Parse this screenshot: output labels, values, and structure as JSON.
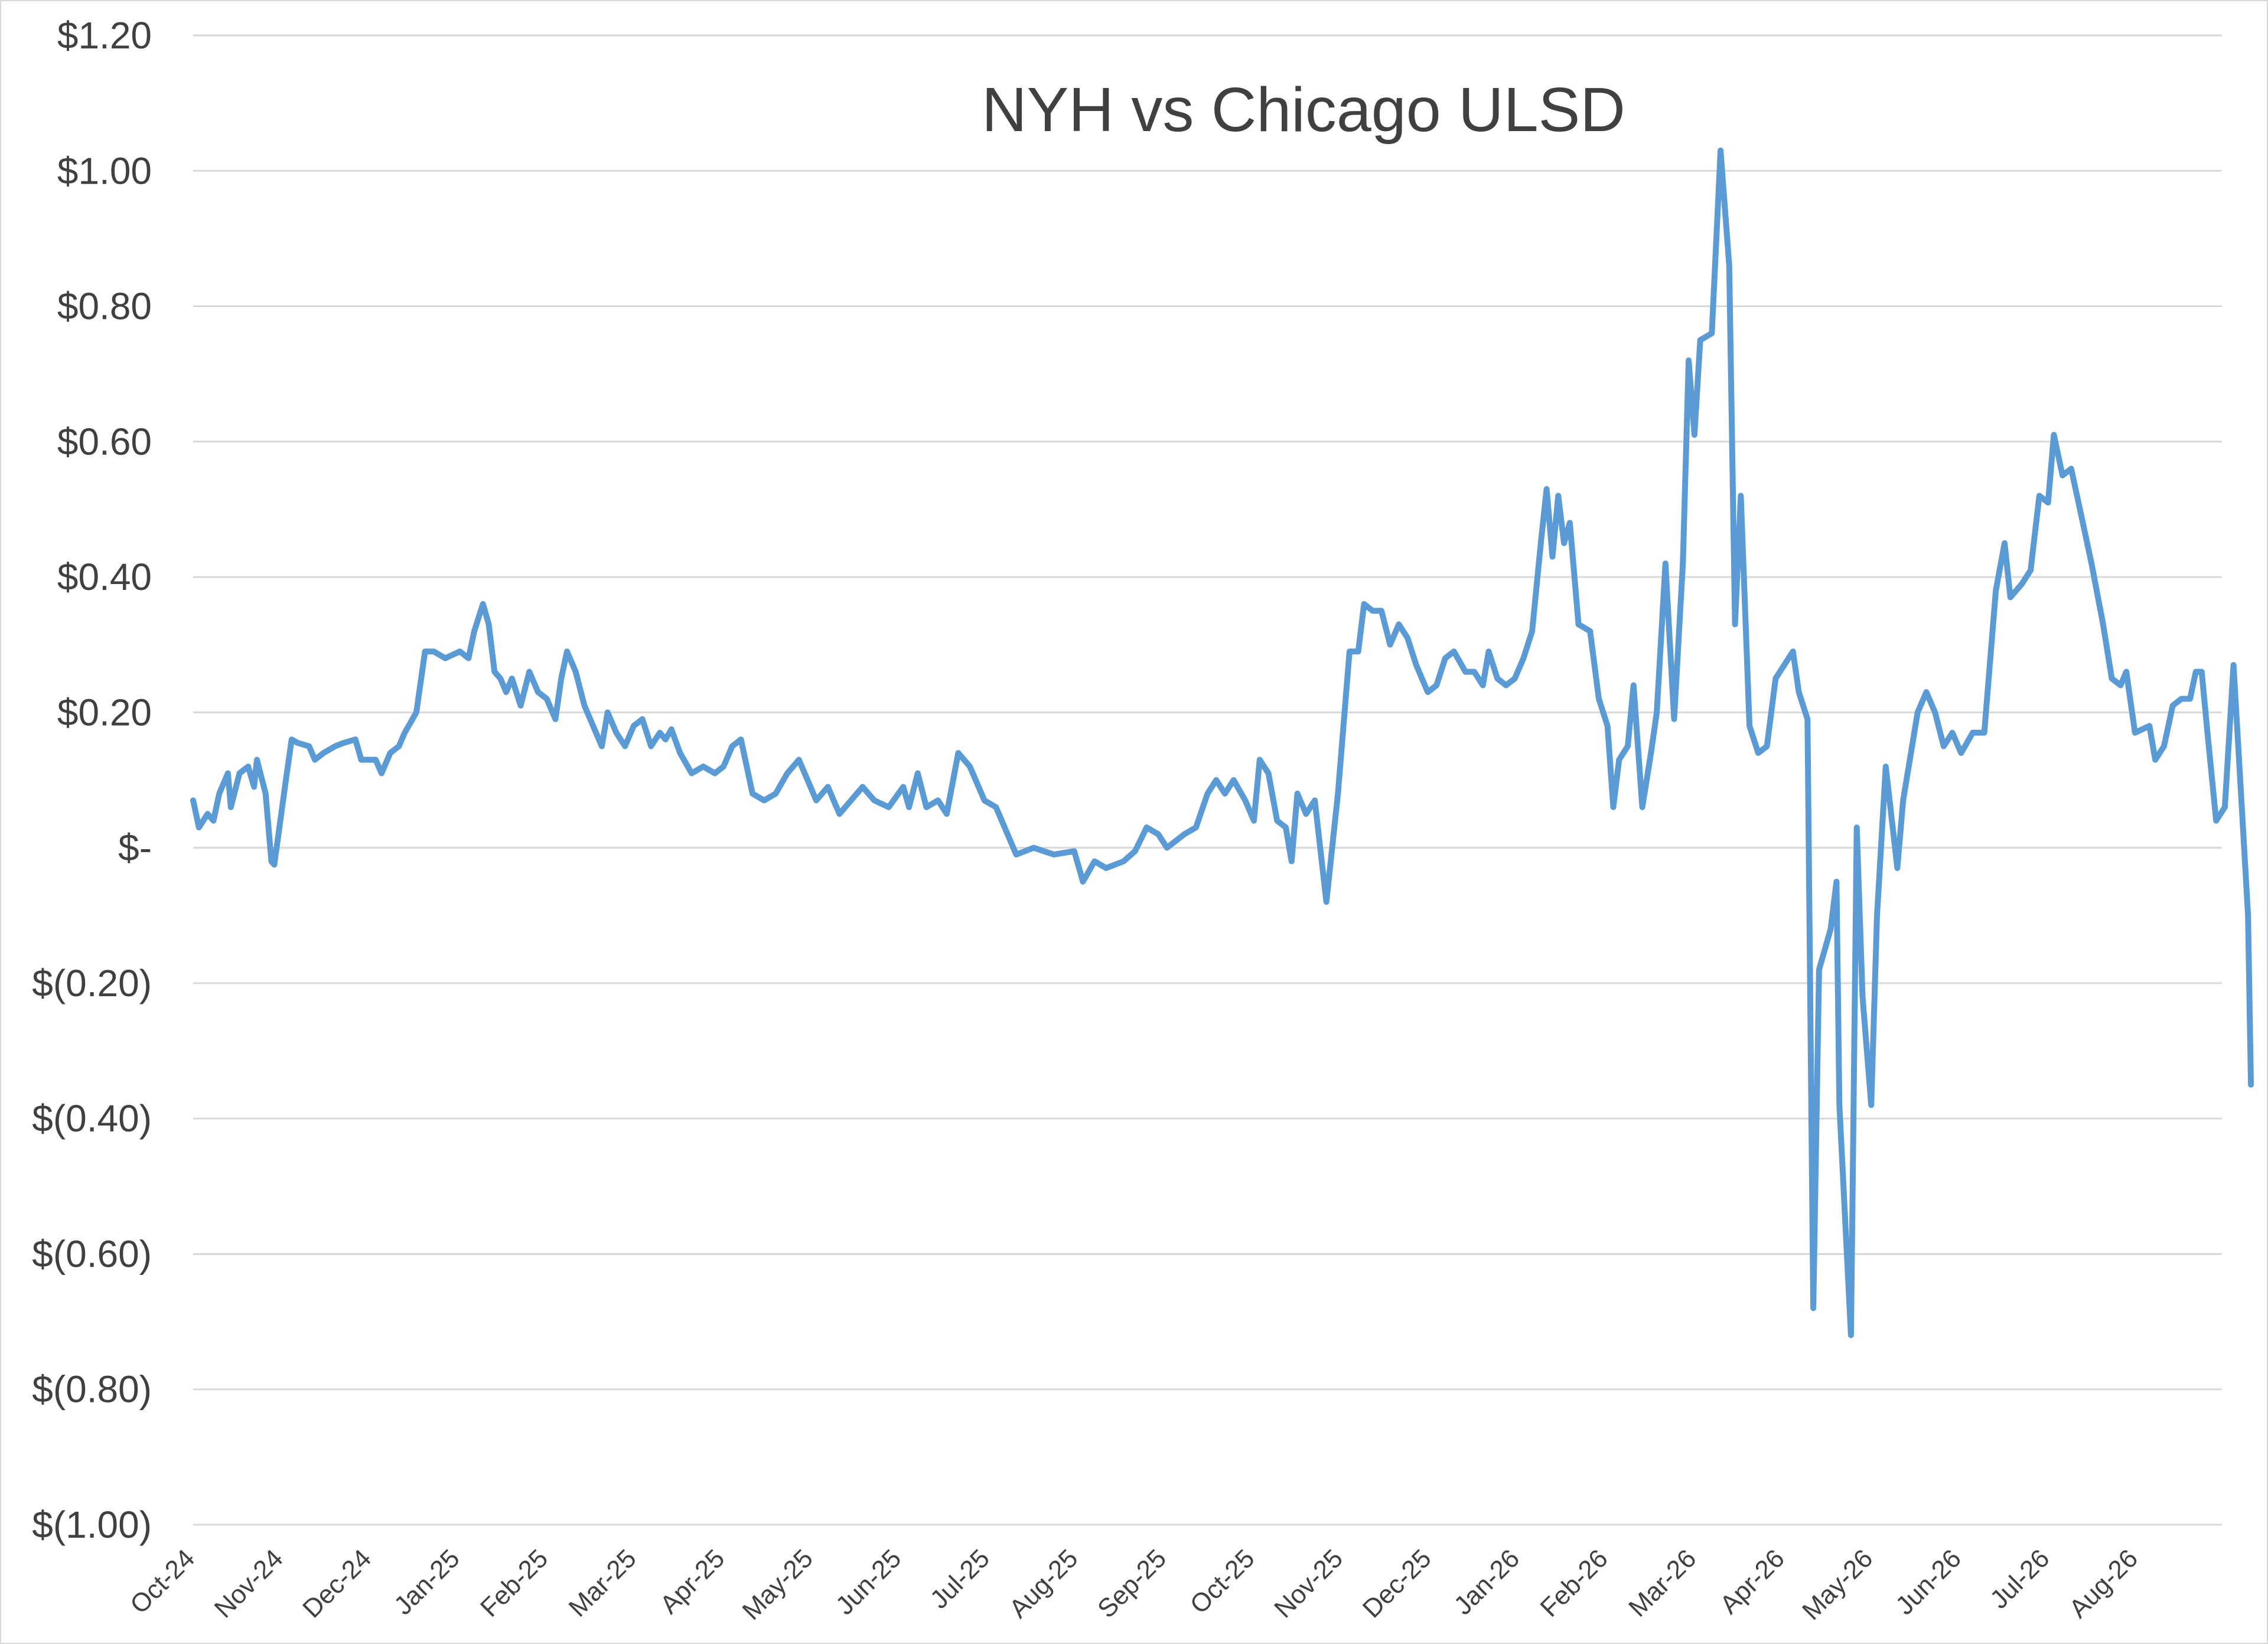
{
  "chart_data": {
    "type": "line",
    "title": "NYH vs Chicago ULSD",
    "xlabel": "",
    "ylabel": "",
    "ylim": [
      -1.0,
      1.2
    ],
    "grid": true,
    "legend": "none",
    "colors": {
      "series": "#5b9bd5",
      "grid": "#d9d9d9",
      "text": "#404040"
    },
    "y_ticks": [
      {
        "value": 1.2,
        "label": "$1.20"
      },
      {
        "value": 1.0,
        "label": "$1.00"
      },
      {
        "value": 0.8,
        "label": "$0.80"
      },
      {
        "value": 0.6,
        "label": "$0.60"
      },
      {
        "value": 0.4,
        "label": "$0.40"
      },
      {
        "value": 0.2,
        "label": "$0.20"
      },
      {
        "value": 0.0,
        "label": "$-"
      },
      {
        "value": -0.2,
        "label": "$(0.20)"
      },
      {
        "value": -0.4,
        "label": "$(0.40)"
      },
      {
        "value": -0.6,
        "label": "$(0.60)"
      },
      {
        "value": -0.8,
        "label": "$(0.80)"
      },
      {
        "value": -1.0,
        "label": "$(1.00)"
      }
    ],
    "x_ticks": [
      "Oct-24",
      "Nov-24",
      "Dec-24",
      "Jan-25",
      "Feb-25",
      "Mar-25",
      "Apr-25",
      "May-25",
      "Jun-25",
      "Jul-25",
      "Aug-25",
      "Sep-25",
      "Oct-25",
      "Nov-25",
      "Dec-25",
      "Jan-26",
      "Feb-26",
      "Mar-26",
      "Apr-26",
      "May-26",
      "Jun-26",
      "Jul-26",
      "Aug-26"
    ],
    "x_range": [
      "2024-10-01",
      "2026-09-01"
    ],
    "series": [
      {
        "values": [
          [
            "2024-10-01",
            0.07
          ],
          [
            "2024-10-03",
            0.03
          ],
          [
            "2024-10-06",
            0.05
          ],
          [
            "2024-10-08",
            0.04
          ],
          [
            "2024-10-10",
            0.08
          ],
          [
            "2024-10-13",
            0.11
          ],
          [
            "2024-10-14",
            0.06
          ],
          [
            "2024-10-17",
            0.11
          ],
          [
            "2024-10-20",
            0.12
          ],
          [
            "2024-10-22",
            0.09
          ],
          [
            "2024-10-23",
            0.13
          ],
          [
            "2024-10-26",
            0.08
          ],
          [
            "2024-10-28",
            -0.02
          ],
          [
            "2024-10-29",
            -0.025
          ],
          [
            "2024-11-02",
            0.1
          ],
          [
            "2024-11-04",
            0.16
          ],
          [
            "2024-11-06",
            0.155
          ],
          [
            "2024-11-10",
            0.15
          ],
          [
            "2024-11-12",
            0.13
          ],
          [
            "2024-11-15",
            0.14
          ],
          [
            "2024-11-19",
            0.15
          ],
          [
            "2024-11-22",
            0.155
          ],
          [
            "2024-11-26",
            0.16
          ],
          [
            "2024-11-28",
            0.13
          ],
          [
            "2024-12-03",
            0.13
          ],
          [
            "2024-12-05",
            0.11
          ],
          [
            "2024-12-08",
            0.14
          ],
          [
            "2024-12-11",
            0.15
          ],
          [
            "2024-12-13",
            0.17
          ],
          [
            "2024-12-17",
            0.2
          ],
          [
            "2024-12-20",
            0.29
          ],
          [
            "2024-12-23",
            0.29
          ],
          [
            "2024-12-27",
            0.28
          ],
          [
            "2025-01-01",
            0.29
          ],
          [
            "2025-01-04",
            0.28
          ],
          [
            "2025-01-06",
            0.32
          ],
          [
            "2025-01-09",
            0.36
          ],
          [
            "2025-01-11",
            0.33
          ],
          [
            "2025-01-13",
            0.26
          ],
          [
            "2025-01-15",
            0.25
          ],
          [
            "2025-01-17",
            0.23
          ],
          [
            "2025-01-19",
            0.25
          ],
          [
            "2025-01-22",
            0.21
          ],
          [
            "2025-01-25",
            0.26
          ],
          [
            "2025-01-28",
            0.23
          ],
          [
            "2025-01-31",
            0.22
          ],
          [
            "2025-02-03",
            0.19
          ],
          [
            "2025-02-05",
            0.25
          ],
          [
            "2025-02-07",
            0.29
          ],
          [
            "2025-02-10",
            0.26
          ],
          [
            "2025-02-13",
            0.21
          ],
          [
            "2025-02-16",
            0.18
          ],
          [
            "2025-02-19",
            0.15
          ],
          [
            "2025-02-21",
            0.2
          ],
          [
            "2025-02-24",
            0.17
          ],
          [
            "2025-02-27",
            0.15
          ],
          [
            "2025-03-02",
            0.18
          ],
          [
            "2025-03-05",
            0.19
          ],
          [
            "2025-03-08",
            0.15
          ],
          [
            "2025-03-11",
            0.17
          ],
          [
            "2025-03-13",
            0.16
          ],
          [
            "2025-03-15",
            0.175
          ],
          [
            "2025-03-18",
            0.14
          ],
          [
            "2025-03-22",
            0.11
          ],
          [
            "2025-03-26",
            0.12
          ],
          [
            "2025-03-30",
            0.11
          ],
          [
            "2025-04-02",
            0.12
          ],
          [
            "2025-04-05",
            0.15
          ],
          [
            "2025-04-08",
            0.16
          ],
          [
            "2025-04-12",
            0.08
          ],
          [
            "2025-04-16",
            0.07
          ],
          [
            "2025-04-20",
            0.08
          ],
          [
            "2025-04-24",
            0.11
          ],
          [
            "2025-04-28",
            0.13
          ],
          [
            "2025-05-01",
            0.1
          ],
          [
            "2025-05-04",
            0.07
          ],
          [
            "2025-05-08",
            0.09
          ],
          [
            "2025-05-12",
            0.05
          ],
          [
            "2025-05-16",
            0.07
          ],
          [
            "2025-05-20",
            0.09
          ],
          [
            "2025-05-24",
            0.07
          ],
          [
            "2025-05-29",
            0.06
          ],
          [
            "2025-06-03",
            0.09
          ],
          [
            "2025-06-05",
            0.06
          ],
          [
            "2025-06-08",
            0.11
          ],
          [
            "2025-06-11",
            0.06
          ],
          [
            "2025-06-15",
            0.07
          ],
          [
            "2025-06-18",
            0.05
          ],
          [
            "2025-06-22",
            0.14
          ],
          [
            "2025-06-26",
            0.12
          ],
          [
            "2025-07-01",
            0.07
          ],
          [
            "2025-07-05",
            0.06
          ],
          [
            "2025-07-08",
            0.03
          ],
          [
            "2025-07-12",
            -0.01
          ],
          [
            "2025-07-18",
            0.0
          ],
          [
            "2025-07-25",
            -0.01
          ],
          [
            "2025-08-01",
            -0.005
          ],
          [
            "2025-08-04",
            -0.05
          ],
          [
            "2025-08-08",
            -0.02
          ],
          [
            "2025-08-12",
            -0.03
          ],
          [
            "2025-08-18",
            -0.02
          ],
          [
            "2025-08-22",
            -0.005
          ],
          [
            "2025-08-26",
            0.03
          ],
          [
            "2025-08-30",
            0.02
          ],
          [
            "2025-09-02",
            0.0
          ],
          [
            "2025-09-08",
            0.02
          ],
          [
            "2025-09-12",
            0.03
          ],
          [
            "2025-09-16",
            0.08
          ],
          [
            "2025-09-19",
            0.1
          ],
          [
            "2025-09-22",
            0.08
          ],
          [
            "2025-09-25",
            0.1
          ],
          [
            "2025-09-29",
            0.07
          ],
          [
            "2025-10-02",
            0.04
          ],
          [
            "2025-10-04",
            0.13
          ],
          [
            "2025-10-07",
            0.11
          ],
          [
            "2025-10-10",
            0.04
          ],
          [
            "2025-10-13",
            0.03
          ],
          [
            "2025-10-15",
            -0.02
          ],
          [
            "2025-10-17",
            0.08
          ],
          [
            "2025-10-20",
            0.05
          ],
          [
            "2025-10-23",
            0.07
          ],
          [
            "2025-10-27",
            -0.08
          ],
          [
            "2025-10-31",
            0.08
          ],
          [
            "2025-11-04",
            0.29
          ],
          [
            "2025-11-07",
            0.29
          ],
          [
            "2025-11-09",
            0.36
          ],
          [
            "2025-11-12",
            0.35
          ],
          [
            "2025-11-15",
            0.35
          ],
          [
            "2025-11-18",
            0.3
          ],
          [
            "2025-11-21",
            0.33
          ],
          [
            "2025-11-24",
            0.31
          ],
          [
            "2025-11-27",
            0.27
          ],
          [
            "2025-12-01",
            0.23
          ],
          [
            "2025-12-04",
            0.24
          ],
          [
            "2025-12-07",
            0.28
          ],
          [
            "2025-12-10",
            0.29
          ],
          [
            "2025-12-14",
            0.26
          ],
          [
            "2025-12-17",
            0.26
          ],
          [
            "2025-12-20",
            0.24
          ],
          [
            "2025-12-22",
            0.29
          ],
          [
            "2025-12-25",
            0.25
          ],
          [
            "2025-12-28",
            0.24
          ],
          [
            "2025-12-31",
            0.25
          ],
          [
            "2026-01-03",
            0.28
          ],
          [
            "2026-01-06",
            0.32
          ],
          [
            "2026-01-09",
            0.45
          ],
          [
            "2026-01-11",
            0.53
          ],
          [
            "2026-01-13",
            0.43
          ],
          [
            "2026-01-15",
            0.52
          ],
          [
            "2026-01-17",
            0.45
          ],
          [
            "2026-01-19",
            0.48
          ],
          [
            "2026-01-22",
            0.33
          ],
          [
            "2026-01-26",
            0.32
          ],
          [
            "2026-01-29",
            0.22
          ],
          [
            "2026-02-01",
            0.18
          ],
          [
            "2026-02-03",
            0.06
          ],
          [
            "2026-02-05",
            0.13
          ],
          [
            "2026-02-08",
            0.15
          ],
          [
            "2026-02-10",
            0.24
          ],
          [
            "2026-02-13",
            0.06
          ],
          [
            "2026-02-16",
            0.14
          ],
          [
            "2026-02-18",
            0.2
          ],
          [
            "2026-02-21",
            0.42
          ],
          [
            "2026-02-24",
            0.19
          ],
          [
            "2026-02-27",
            0.42
          ],
          [
            "2026-03-01",
            0.72
          ],
          [
            "2026-03-03",
            0.61
          ],
          [
            "2026-03-05",
            0.75
          ],
          [
            "2026-03-09",
            0.76
          ],
          [
            "2026-03-12",
            1.03
          ],
          [
            "2026-03-15",
            0.86
          ],
          [
            "2026-03-17",
            0.33
          ],
          [
            "2026-03-19",
            0.52
          ],
          [
            "2026-03-22",
            0.18
          ],
          [
            "2026-03-25",
            0.14
          ],
          [
            "2026-03-28",
            0.15
          ],
          [
            "2026-03-31",
            0.25
          ],
          [
            "2026-04-03",
            0.27
          ],
          [
            "2026-04-06",
            0.29
          ],
          [
            "2026-04-08",
            0.23
          ],
          [
            "2026-04-11",
            0.19
          ],
          [
            "2026-04-13",
            -0.68
          ],
          [
            "2026-04-15",
            -0.18
          ],
          [
            "2026-04-19",
            -0.12
          ],
          [
            "2026-04-21",
            -0.05
          ],
          [
            "2026-04-22",
            -0.38
          ],
          [
            "2026-04-26",
            -0.72
          ],
          [
            "2026-04-28",
            0.03
          ],
          [
            "2026-04-30",
            -0.22
          ],
          [
            "2026-05-03",
            -0.38
          ],
          [
            "2026-05-05",
            -0.1
          ],
          [
            "2026-05-08",
            0.12
          ],
          [
            "2026-05-12",
            -0.03
          ],
          [
            "2026-05-14",
            0.07
          ],
          [
            "2026-05-19",
            0.2
          ],
          [
            "2026-05-22",
            0.23
          ],
          [
            "2026-05-25",
            0.2
          ],
          [
            "2026-05-28",
            0.15
          ],
          [
            "2026-05-31",
            0.17
          ],
          [
            "2026-06-03",
            0.14
          ],
          [
            "2026-06-07",
            0.17
          ],
          [
            "2026-06-11",
            0.17
          ],
          [
            "2026-06-15",
            0.38
          ],
          [
            "2026-06-18",
            0.45
          ],
          [
            "2026-06-20",
            0.37
          ],
          [
            "2026-06-24",
            0.39
          ],
          [
            "2026-06-27",
            0.41
          ],
          [
            "2026-06-30",
            0.52
          ],
          [
            "2026-07-03",
            0.51
          ],
          [
            "2026-07-05",
            0.61
          ],
          [
            "2026-07-08",
            0.55
          ],
          [
            "2026-07-11",
            0.56
          ],
          [
            "2026-07-14",
            0.5
          ],
          [
            "2026-07-18",
            0.42
          ],
          [
            "2026-07-22",
            0.33
          ],
          [
            "2026-07-25",
            0.25
          ],
          [
            "2026-07-28",
            0.24
          ],
          [
            "2026-07-30",
            0.26
          ],
          [
            "2026-08-02",
            0.17
          ],
          [
            "2026-08-07",
            0.18
          ],
          [
            "2026-08-09",
            0.13
          ],
          [
            "2026-08-12",
            0.15
          ],
          [
            "2026-08-15",
            0.21
          ],
          [
            "2026-08-18",
            0.22
          ],
          [
            "2026-08-21",
            0.22
          ],
          [
            "2026-08-23",
            0.26
          ],
          [
            "2026-08-25",
            0.26
          ],
          [
            "2026-08-27",
            0.17
          ],
          [
            "2026-08-30",
            0.04
          ],
          [
            "2026-09-02",
            0.06
          ],
          [
            "2026-09-05",
            0.27
          ],
          [
            "2026-09-08",
            0.05
          ],
          [
            "2026-09-10",
            -0.1
          ],
          [
            "2026-09-11",
            -0.35
          ]
        ]
      }
    ]
  }
}
